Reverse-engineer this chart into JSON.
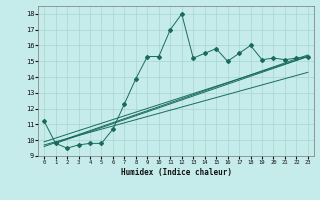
{
  "xlabel": "Humidex (Indice chaleur)",
  "background_color": "#c5eceb",
  "grid_color": "#a8d5d3",
  "line_color": "#1a6b5a",
  "xlim": [
    -0.5,
    23.5
  ],
  "ylim": [
    9,
    18.5
  ],
  "yticks": [
    9,
    10,
    11,
    12,
    13,
    14,
    15,
    16,
    17,
    18
  ],
  "xticks": [
    0,
    1,
    2,
    3,
    4,
    5,
    6,
    7,
    8,
    9,
    10,
    11,
    12,
    13,
    14,
    15,
    16,
    17,
    18,
    19,
    20,
    21,
    22,
    23
  ],
  "series1_x": [
    0,
    1,
    2,
    3,
    4,
    5,
    6,
    7,
    8,
    9,
    10,
    11,
    12,
    13,
    14,
    15,
    16,
    17,
    18,
    19,
    20,
    21,
    22,
    23
  ],
  "series1_y": [
    11.2,
    9.8,
    9.5,
    9.7,
    9.8,
    9.8,
    10.7,
    12.3,
    13.9,
    15.3,
    15.3,
    17.0,
    18.0,
    15.2,
    15.5,
    15.8,
    15.0,
    15.5,
    16.0,
    15.1,
    15.2,
    15.1,
    15.2,
    15.3
  ],
  "line1_x": [
    0,
    23
  ],
  "line1_y": [
    9.6,
    15.4
  ],
  "line2_x": [
    0,
    23
  ],
  "line2_y": [
    9.7,
    14.3
  ],
  "line3_x": [
    0,
    23
  ],
  "line3_y": [
    9.9,
    15.3
  ],
  "line4_x": [
    1,
    23
  ],
  "line4_y": [
    9.8,
    15.3
  ]
}
